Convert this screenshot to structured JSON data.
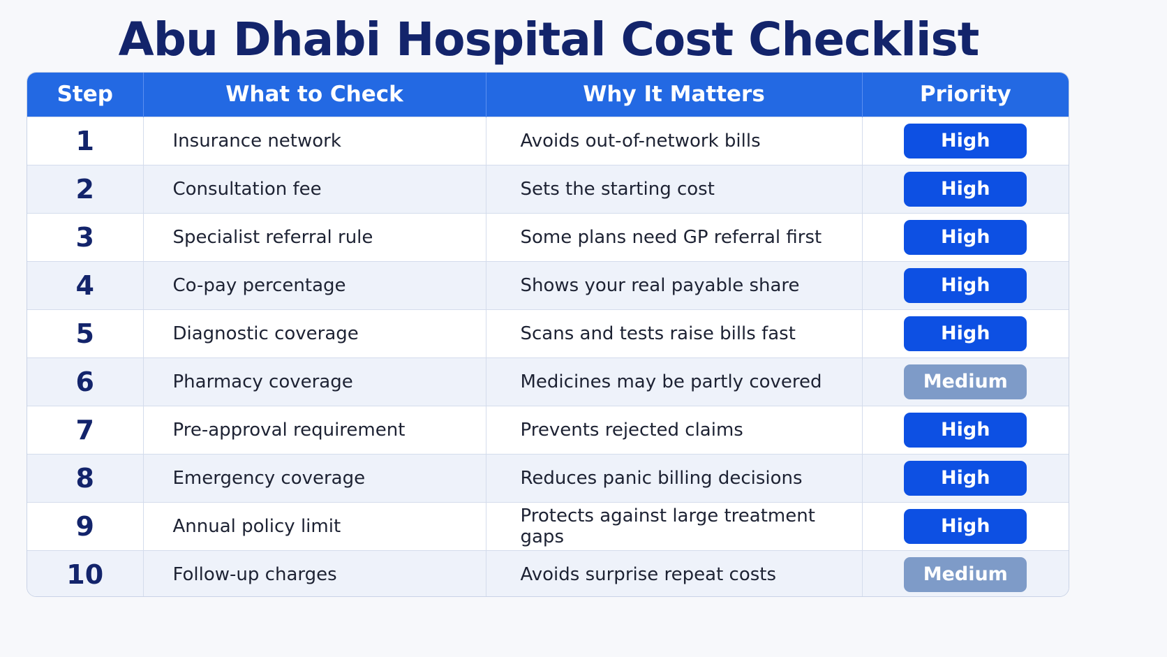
{
  "title": "Abu Dhabi Hospital Cost Checklist",
  "colors": {
    "header_bg": "#2369e3",
    "high": "#0d50e3",
    "medium": "#7e9bc8",
    "title": "#13246b"
  },
  "headers": [
    "Step",
    "What to Check",
    "Why It Matters",
    "Priority"
  ],
  "rows": [
    {
      "step": "1",
      "what": "Insurance network",
      "why": "Avoids out-of-network bills",
      "priority": "High"
    },
    {
      "step": "2",
      "what": "Consultation fee",
      "why": "Sets the starting cost",
      "priority": "High"
    },
    {
      "step": "3",
      "what": "Specialist referral rule",
      "why": "Some plans need GP referral first",
      "priority": "High"
    },
    {
      "step": "4",
      "what": "Co-pay percentage",
      "why": "Shows your real payable share",
      "priority": "High"
    },
    {
      "step": "5",
      "what": "Diagnostic coverage",
      "why": "Scans and tests raise bills fast",
      "priority": "High"
    },
    {
      "step": "6",
      "what": "Pharmacy coverage",
      "why": "Medicines may be partly covered",
      "priority": "Medium"
    },
    {
      "step": "7",
      "what": "Pre-approval requirement",
      "why": "Prevents rejected claims",
      "priority": "High"
    },
    {
      "step": "8",
      "what": "Emergency coverage",
      "why": "Reduces panic billing decisions",
      "priority": "High"
    },
    {
      "step": "9",
      "what": "Annual policy limit",
      "why": "Protects against large treatment gaps",
      "priority": "High"
    },
    {
      "step": "10",
      "what": "Follow-up charges",
      "why": "Avoids surprise repeat costs",
      "priority": "Medium"
    }
  ]
}
